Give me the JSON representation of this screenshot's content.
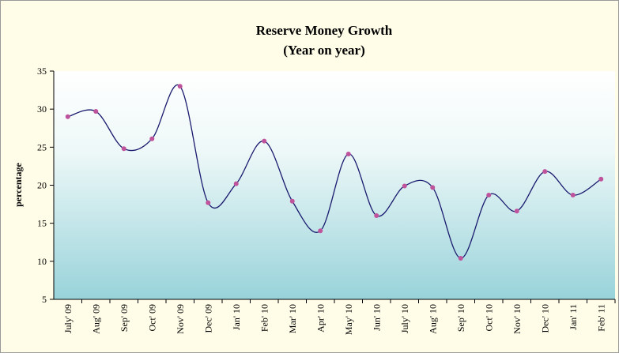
{
  "chart_data": {
    "type": "line",
    "title": "Reserve Money Growth",
    "subtitle": "(Year on year)",
    "y_label": "percentage",
    "categories": [
      "July' 09",
      "Aug' 09",
      "Sep' 09",
      "Oct' 09",
      "Nov' 09",
      "Dec' 09",
      "Jan' 10",
      "Feb' 10",
      "Mar' 10",
      "Apr' 10",
      "May' 10",
      "Jun' 10",
      "July' 10",
      "Aug' 10",
      "Sep' 10",
      "Oct' 10",
      "Nov' 10",
      "Dec' 10",
      "Jan' 11",
      "Feb' 11"
    ],
    "series": [
      {
        "name": "Reserve Money Growth",
        "color": "#1a1a6e",
        "marker_color": "#c0549c",
        "values": [
          29.0,
          29.7,
          24.8,
          26.1,
          33.0,
          17.7,
          20.2,
          25.8,
          17.9,
          14.0,
          24.1,
          16.0,
          19.9,
          19.7,
          10.4,
          18.7,
          16.6,
          21.8,
          18.7,
          20.8
        ]
      }
    ],
    "ylim": [
      5,
      35
    ],
    "yticks": [
      5,
      10,
      15,
      20,
      25,
      30,
      35
    ]
  }
}
